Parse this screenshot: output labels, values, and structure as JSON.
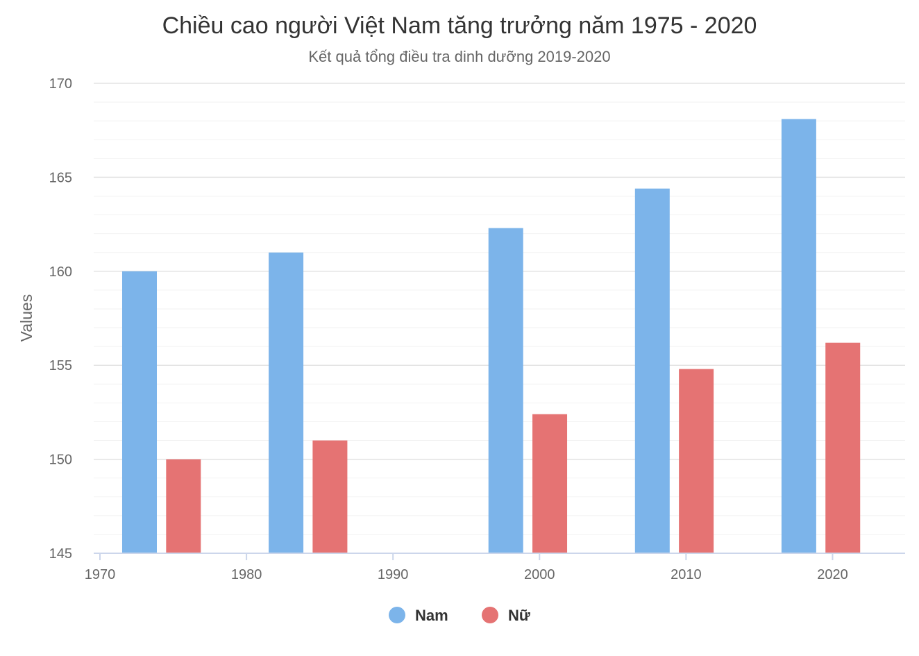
{
  "chart_data": {
    "type": "bar",
    "title": "Chiều cao người Việt Nam tăng trưởng năm 1975 - 2020",
    "subtitle": "Kết quả tổng điều tra dinh dưỡng 2019-2020",
    "ylabel": "Values",
    "xlabel": "",
    "x": [
      1975,
      1985,
      2000,
      2010,
      2020
    ],
    "series": [
      {
        "name": "Nam",
        "color": "#7cb4ea",
        "values": [
          160.0,
          161.0,
          162.3,
          164.4,
          168.1
        ]
      },
      {
        "name": "Nữ",
        "color": "#e57373",
        "values": [
          150.0,
          151.0,
          152.4,
          154.8,
          156.2
        ]
      }
    ],
    "xlim": [
      1970,
      2025
    ],
    "ylim": [
      145,
      170
    ],
    "x_ticks": [
      "1970",
      "1980",
      "1990",
      "2000",
      "2010",
      "2020"
    ],
    "y_ticks": [
      "145",
      "150",
      "155",
      "160",
      "165",
      "170"
    ],
    "grid": true,
    "legend_position": "bottom-center"
  }
}
